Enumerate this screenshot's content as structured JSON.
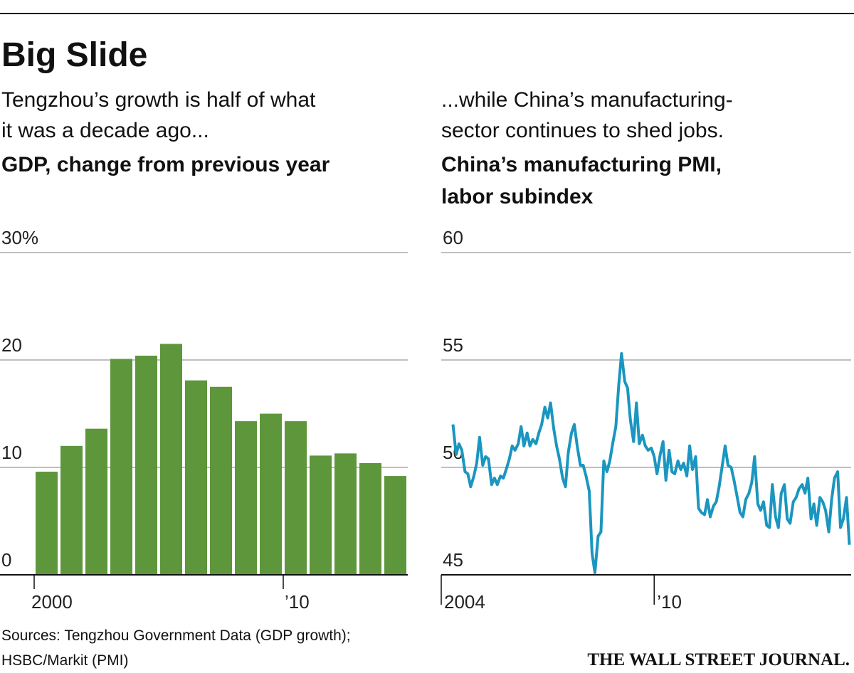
{
  "title": "Big Slide",
  "sources": [
    "Sources: Tengzhou Government Data (GDP growth);",
    "HSBC/Markit (PMI)"
  ],
  "credit": "THE WALL STREET JOURNAL.",
  "chart_data": [
    {
      "type": "bar",
      "subtitle": [
        "Tengzhou’s growth is half of what",
        "it was a decade ago..."
      ],
      "title": "GDP, change from previous year",
      "categories": [
        "2000",
        null,
        null,
        null,
        null,
        null,
        null,
        null,
        null,
        null,
        "’10",
        null,
        null,
        null,
        null
      ],
      "values": [
        9.6,
        12.0,
        13.6,
        20.1,
        20.4,
        21.5,
        18.1,
        17.5,
        14.3,
        15.0,
        14.3,
        11.1,
        11.3,
        10.4,
        9.2
      ],
      "color": "#5e963b",
      "ylim": [
        0,
        30
      ],
      "yticks": [
        0,
        10,
        20,
        {
          "value": 30,
          "label": "30%"
        }
      ],
      "grid": true
    },
    {
      "type": "line",
      "subtitle": [
        "...while China’s manufacturing-",
        "sector continues to shed jobs."
      ],
      "title": [
        "China’s manufacturing PMI,",
        "labor subindex"
      ],
      "x": [
        2004.33,
        2004.42,
        2004.5,
        2004.58,
        2004.67,
        2004.75,
        2004.83,
        2004.92,
        2005.0,
        2005.08,
        2005.17,
        2005.25,
        2005.33,
        2005.42,
        2005.5,
        2005.58,
        2005.67,
        2005.75,
        2005.83,
        2005.92,
        2006.0,
        2006.08,
        2006.17,
        2006.25,
        2006.33,
        2006.42,
        2006.5,
        2006.58,
        2006.67,
        2006.75,
        2006.83,
        2006.92,
        2007.0,
        2007.08,
        2007.17,
        2007.25,
        2007.33,
        2007.42,
        2007.5,
        2007.58,
        2007.67,
        2007.75,
        2007.83,
        2007.92,
        2008.0,
        2008.08,
        2008.17,
        2008.25,
        2008.33,
        2008.42,
        2008.5,
        2008.58,
        2008.67,
        2008.75,
        2008.83,
        2008.92,
        2009.0,
        2009.08,
        2009.17,
        2009.25,
        2009.33,
        2009.42,
        2009.5,
        2009.58,
        2009.67,
        2009.75,
        2009.83,
        2009.92,
        2010.0,
        2010.08,
        2010.17,
        2010.25,
        2010.33,
        2010.42,
        2010.5,
        2010.58,
        2010.67,
        2010.75,
        2010.83,
        2010.92,
        2011.0,
        2011.08,
        2011.17,
        2011.25,
        2011.33,
        2011.42,
        2011.5,
        2011.58,
        2011.67,
        2011.75,
        2011.83,
        2011.92,
        2012.0,
        2012.08,
        2012.17,
        2012.25,
        2012.33,
        2012.42,
        2012.5,
        2012.58,
        2012.67,
        2012.75,
        2012.83,
        2012.92,
        2013.0,
        2013.08,
        2013.17,
        2013.25,
        2013.33,
        2013.42,
        2013.5,
        2013.58,
        2013.67,
        2013.75,
        2013.83,
        2013.92,
        2014.0,
        2014.08,
        2014.17,
        2014.25,
        2014.33,
        2014.42,
        2014.5,
        2014.58,
        2014.67,
        2014.75,
        2014.83,
        2014.92,
        2015.0,
        2015.08,
        2015.17,
        2015.25,
        2015.33,
        2015.42,
        2015.5
      ],
      "values": [
        52.0,
        50.6,
        51.1,
        50.8,
        49.8,
        49.7,
        49.1,
        49.6,
        50.2,
        51.4,
        50.1,
        50.5,
        50.4,
        49.2,
        49.5,
        49.2,
        49.6,
        49.5,
        49.9,
        50.4,
        51.0,
        50.8,
        51.1,
        51.9,
        51.0,
        51.6,
        51.0,
        51.3,
        51.1,
        51.6,
        52.0,
        52.8,
        52.3,
        53.0,
        51.8,
        51.0,
        50.4,
        49.5,
        49.1,
        50.7,
        51.6,
        52.0,
        51.0,
        50.1,
        50.1,
        49.6,
        48.9,
        46.0,
        45.1,
        46.8,
        47.0,
        50.3,
        49.8,
        50.3,
        51.1,
        51.9,
        53.8,
        55.3,
        54.0,
        53.7,
        52.2,
        51.2,
        53.0,
        51.1,
        51.5,
        51.0,
        50.8,
        50.9,
        50.5,
        49.7,
        50.6,
        51.2,
        49.4,
        50.8,
        49.8,
        49.7,
        50.3,
        49.9,
        50.2,
        49.6,
        51.0,
        49.9,
        50.5,
        48.1,
        47.9,
        47.8,
        48.5,
        47.7,
        48.2,
        48.4,
        49.1,
        50.1,
        51.0,
        50.1,
        50.0,
        49.4,
        48.7,
        47.9,
        47.7,
        48.5,
        48.8,
        49.3,
        50.5,
        48.3,
        48.0,
        48.4,
        47.3,
        47.2,
        49.2,
        47.7,
        47.2,
        48.8,
        49.2,
        47.6,
        47.4,
        48.4,
        48.6,
        49.0,
        49.2,
        48.8,
        49.5,
        47.6,
        48.3,
        47.3,
        48.6,
        48.4,
        48.0,
        47.0,
        48.5,
        49.5,
        49.8,
        47.2,
        47.6,
        48.6,
        46.4
      ],
      "color": "#1a96c0",
      "xlim": [
        2004,
        2015.55
      ],
      "xticks": [
        2004,
        {
          "value": 2010,
          "label": "’10"
        }
      ],
      "ylim": [
        45,
        60
      ],
      "yticks": [
        45,
        50,
        55,
        60
      ],
      "grid": true
    }
  ]
}
